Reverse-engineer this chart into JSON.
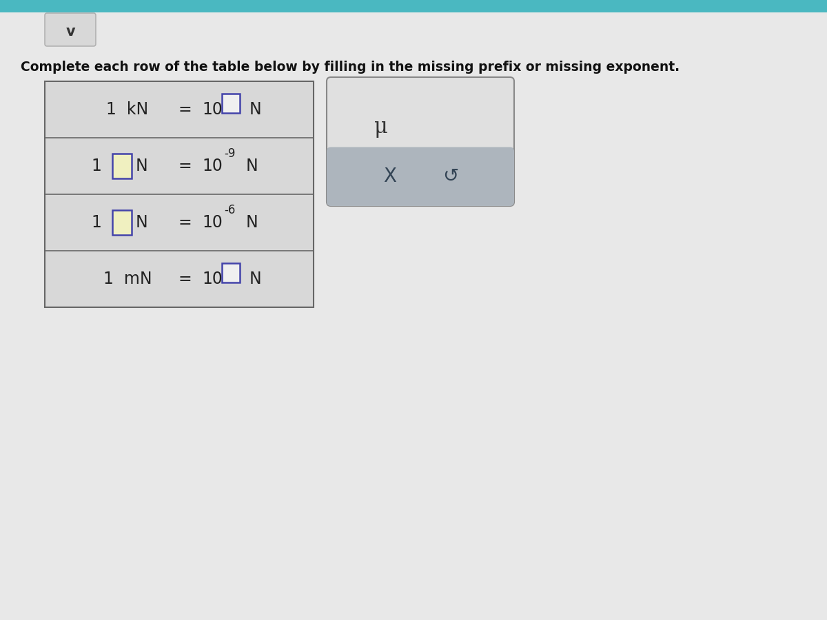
{
  "title": "Complete each row of the table below by filling in the missing prefix or missing exponent.",
  "title_fontsize": 13.5,
  "page_bg": "#e8e8e8",
  "table_bg": "#d8d8d8",
  "row_border_color": "#666666",
  "rows": [
    {
      "left_text": "1  kN",
      "left_box": false,
      "right_exp": "",
      "right_box": true
    },
    {
      "left_text": "1",
      "left_suffix": "N",
      "left_box": true,
      "right_exp": "-9",
      "right_box": false
    },
    {
      "left_text": "1",
      "left_suffix": "N",
      "left_box": true,
      "right_exp": "-6",
      "right_box": false
    },
    {
      "left_text": "1  mN",
      "left_box": false,
      "right_exp": "",
      "right_box": true
    }
  ],
  "input_box_color": "#f0f0c0",
  "input_box_border": "#4444aa",
  "answer_box": {
    "bg": "#e0e0e0",
    "border": "#888888",
    "mu_text": "μ",
    "mu_color": "#333333",
    "bottom_bg": "#adb5bd",
    "x_text": "X",
    "undo_text": "↺",
    "icon_color": "#334455"
  },
  "chevron_box_bg": "#d8d8d8",
  "chevron_box_border": "#aaaaaa",
  "teal_bar": "#4ab8c1"
}
